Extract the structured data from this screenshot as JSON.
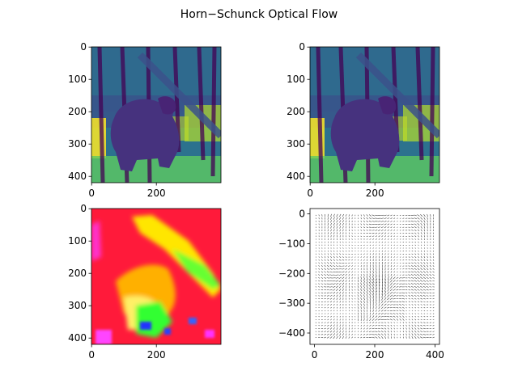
{
  "title": "Horn−Schunck Optical Flow",
  "colors": {
    "viridis_dark": "#440154",
    "viridis_mid": "#21918c",
    "viridis_light": "#a0da39",
    "viridis_yellow": "#fde725",
    "hsv_red": "#ff1a33",
    "hsv_yellow": "#ffe600",
    "hsv_green": "#33ff22",
    "hsv_magenta": "#ff33ff",
    "hsv_blue": "#2233ff",
    "quiver": "#000000"
  },
  "chart_data": [
    {
      "type": "heatmap",
      "content": "grayscale frame rendered with viridis colormap",
      "extent_x": [
        0,
        399
      ],
      "extent_y": [
        419,
        0
      ],
      "x_ticks": [
        0,
        200
      ],
      "y_ticks": [
        0,
        100,
        200,
        300,
        400
      ],
      "x_tick_labels": [
        "0",
        "200"
      ],
      "y_tick_labels": [
        "0",
        "100",
        "200",
        "300",
        "400"
      ]
    },
    {
      "type": "heatmap",
      "content": "grayscale frame rendered with viridis colormap",
      "extent_x": [
        0,
        399
      ],
      "extent_y": [
        419,
        0
      ],
      "x_ticks": [
        0,
        200
      ],
      "y_ticks": [
        0,
        100,
        200,
        300,
        400
      ],
      "x_tick_labels": [
        "0",
        "200"
      ],
      "y_tick_labels": [
        "0",
        "100",
        "200",
        "300",
        "400"
      ]
    },
    {
      "type": "heatmap",
      "content": "flow field rendered with hsv colormap",
      "extent_x": [
        0,
        399
      ],
      "extent_y": [
        419,
        0
      ],
      "x_ticks": [
        0,
        200
      ],
      "y_ticks": [
        0,
        100,
        200,
        300,
        400
      ],
      "x_tick_labels": [
        "0",
        "200"
      ],
      "y_tick_labels": [
        "0",
        "100",
        "200",
        "300",
        "400"
      ]
    },
    {
      "type": "scatter",
      "content": "quiver plot of flow vectors",
      "xlim": [
        -15,
        415
      ],
      "ylim": [
        -438,
        18
      ],
      "x_ticks": [
        0,
        200,
        400
      ],
      "y_ticks": [
        0,
        -100,
        -200,
        -300,
        -400
      ],
      "x_tick_labels": [
        "0",
        "200",
        "400"
      ],
      "y_tick_labels": [
        "0",
        "−100",
        "−200",
        "−300",
        "−400"
      ]
    }
  ]
}
